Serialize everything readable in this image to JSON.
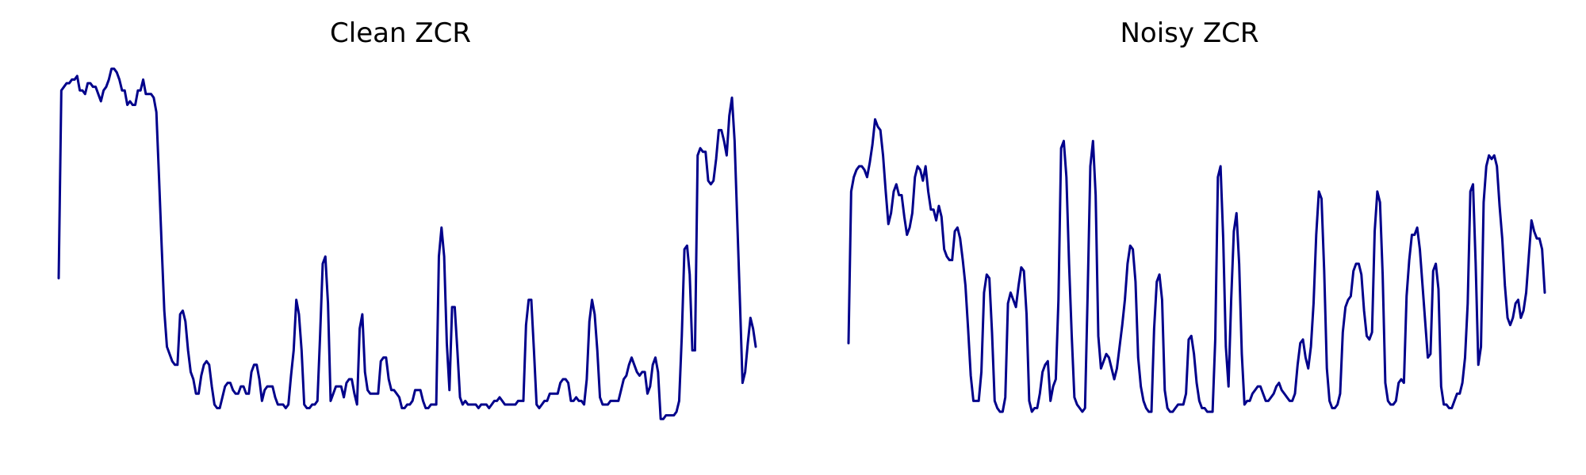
{
  "chart_data": [
    {
      "type": "line",
      "title": "Clean ZCR",
      "xlabel": "",
      "ylabel": "",
      "axes_visible": false,
      "grid": false,
      "color": "#00008b",
      "series": [
        {
          "values": [
            0.44,
            0.96,
            0.97,
            0.98,
            0.98,
            0.99,
            0.99,
            1.0,
            0.96,
            0.96,
            0.95,
            0.98,
            0.98,
            0.97,
            0.97,
            0.95,
            0.93,
            0.96,
            0.97,
            0.99,
            1.02,
            1.02,
            1.01,
            0.99,
            0.96,
            0.96,
            0.92,
            0.93,
            0.92,
            0.92,
            0.96,
            0.96,
            0.99,
            0.95,
            0.95,
            0.95,
            0.94,
            0.9,
            0.72,
            0.53,
            0.35,
            0.25,
            0.23,
            0.21,
            0.2,
            0.2,
            0.34,
            0.35,
            0.32,
            0.24,
            0.18,
            0.16,
            0.12,
            0.12,
            0.17,
            0.2,
            0.21,
            0.2,
            0.14,
            0.09,
            0.08,
            0.08,
            0.11,
            0.14,
            0.15,
            0.15,
            0.13,
            0.12,
            0.12,
            0.14,
            0.14,
            0.12,
            0.12,
            0.18,
            0.2,
            0.2,
            0.16,
            0.1,
            0.13,
            0.14,
            0.14,
            0.14,
            0.11,
            0.09,
            0.09,
            0.09,
            0.08,
            0.09,
            0.17,
            0.24,
            0.38,
            0.34,
            0.24,
            0.09,
            0.08,
            0.08,
            0.09,
            0.09,
            0.1,
            0.28,
            0.48,
            0.5,
            0.37,
            0.1,
            0.12,
            0.14,
            0.14,
            0.14,
            0.11,
            0.15,
            0.16,
            0.16,
            0.12,
            0.09,
            0.3,
            0.34,
            0.18,
            0.13,
            0.12,
            0.12,
            0.12,
            0.12,
            0.21,
            0.22,
            0.22,
            0.16,
            0.13,
            0.13,
            0.12,
            0.11,
            0.08,
            0.08,
            0.09,
            0.09,
            0.1,
            0.13,
            0.13,
            0.13,
            0.1,
            0.08,
            0.08,
            0.09,
            0.09,
            0.09,
            0.5,
            0.58,
            0.5,
            0.26,
            0.13,
            0.36,
            0.36,
            0.24,
            0.11,
            0.09,
            0.1,
            0.09,
            0.09,
            0.09,
            0.09,
            0.08,
            0.09,
            0.09,
            0.09,
            0.08,
            0.09,
            0.1,
            0.1,
            0.11,
            0.1,
            0.09,
            0.09,
            0.09,
            0.09,
            0.09,
            0.1,
            0.1,
            0.1,
            0.31,
            0.38,
            0.38,
            0.24,
            0.09,
            0.08,
            0.09,
            0.1,
            0.1,
            0.12,
            0.12,
            0.12,
            0.12,
            0.15,
            0.16,
            0.16,
            0.15,
            0.1,
            0.1,
            0.11,
            0.1,
            0.1,
            0.09,
            0.16,
            0.32,
            0.38,
            0.34,
            0.24,
            0.11,
            0.09,
            0.09,
            0.09,
            0.1,
            0.1,
            0.1,
            0.1,
            0.13,
            0.16,
            0.17,
            0.2,
            0.22,
            0.2,
            0.18,
            0.17,
            0.18,
            0.18,
            0.12,
            0.14,
            0.2,
            0.22,
            0.18,
            0.05,
            0.05,
            0.06,
            0.06,
            0.06,
            0.06,
            0.07,
            0.1,
            0.28,
            0.52,
            0.53,
            0.45,
            0.24,
            0.24,
            0.78,
            0.8,
            0.79,
            0.79,
            0.71,
            0.7,
            0.71,
            0.77,
            0.85,
            0.85,
            0.82,
            0.78,
            0.89,
            0.94,
            0.82,
            0.6,
            0.38,
            0.15,
            0.18,
            0.26,
            0.33,
            0.3,
            0.25
          ]
        }
      ]
    },
    {
      "type": "line",
      "title": "Noisy ZCR",
      "xlabel": "",
      "ylabel": "",
      "axes_visible": false,
      "grid": false,
      "color": "#00008b",
      "series": [
        {
          "values": [
            0.26,
            0.68,
            0.72,
            0.74,
            0.75,
            0.75,
            0.74,
            0.72,
            0.76,
            0.81,
            0.88,
            0.86,
            0.85,
            0.78,
            0.68,
            0.59,
            0.62,
            0.68,
            0.7,
            0.67,
            0.67,
            0.61,
            0.56,
            0.58,
            0.62,
            0.72,
            0.75,
            0.74,
            0.71,
            0.75,
            0.68,
            0.63,
            0.63,
            0.6,
            0.64,
            0.61,
            0.52,
            0.5,
            0.49,
            0.49,
            0.57,
            0.58,
            0.55,
            0.49,
            0.42,
            0.3,
            0.17,
            0.1,
            0.1,
            0.1,
            0.18,
            0.4,
            0.45,
            0.44,
            0.29,
            0.1,
            0.08,
            0.07,
            0.07,
            0.11,
            0.37,
            0.4,
            0.38,
            0.36,
            0.42,
            0.47,
            0.46,
            0.34,
            0.1,
            0.07,
            0.08,
            0.08,
            0.12,
            0.18,
            0.2,
            0.21,
            0.1,
            0.14,
            0.16,
            0.38,
            0.8,
            0.82,
            0.72,
            0.48,
            0.28,
            0.11,
            0.09,
            0.08,
            0.07,
            0.08,
            0.4,
            0.75,
            0.82,
            0.67,
            0.28,
            0.19,
            0.21,
            0.23,
            0.22,
            0.19,
            0.16,
            0.19,
            0.25,
            0.31,
            0.38,
            0.48,
            0.53,
            0.52,
            0.43,
            0.22,
            0.14,
            0.1,
            0.08,
            0.07,
            0.07,
            0.3,
            0.43,
            0.45,
            0.38,
            0.13,
            0.08,
            0.07,
            0.07,
            0.08,
            0.09,
            0.09,
            0.09,
            0.12,
            0.27,
            0.28,
            0.23,
            0.15,
            0.1,
            0.08,
            0.08,
            0.07,
            0.07,
            0.07,
            0.27,
            0.72,
            0.75,
            0.55,
            0.25,
            0.14,
            0.38,
            0.57,
            0.62,
            0.48,
            0.23,
            0.09,
            0.1,
            0.1,
            0.12,
            0.13,
            0.14,
            0.14,
            0.12,
            0.1,
            0.1,
            0.11,
            0.12,
            0.14,
            0.15,
            0.13,
            0.12,
            0.11,
            0.1,
            0.1,
            0.12,
            0.2,
            0.26,
            0.27,
            0.22,
            0.19,
            0.25,
            0.37,
            0.56,
            0.68,
            0.66,
            0.46,
            0.19,
            0.1,
            0.08,
            0.08,
            0.09,
            0.12,
            0.29,
            0.36,
            0.38,
            0.39,
            0.46,
            0.48,
            0.48,
            0.45,
            0.35,
            0.28,
            0.27,
            0.29,
            0.57,
            0.68,
            0.65,
            0.45,
            0.15,
            0.1,
            0.09,
            0.09,
            0.1,
            0.15,
            0.16,
            0.15,
            0.39,
            0.49,
            0.56,
            0.56,
            0.58,
            0.52,
            0.42,
            0.32,
            0.22,
            0.23,
            0.46,
            0.48,
            0.41,
            0.14,
            0.09,
            0.09,
            0.08,
            0.08,
            0.1,
            0.12,
            0.12,
            0.15,
            0.22,
            0.37,
            0.68,
            0.7,
            0.48,
            0.2,
            0.25,
            0.65,
            0.75,
            0.78,
            0.77,
            0.78,
            0.75,
            0.64,
            0.55,
            0.42,
            0.33,
            0.31,
            0.33,
            0.37,
            0.38,
            0.33,
            0.35,
            0.4,
            0.5,
            0.6,
            0.57,
            0.55,
            0.55,
            0.52,
            0.4
          ]
        }
      ]
    }
  ]
}
